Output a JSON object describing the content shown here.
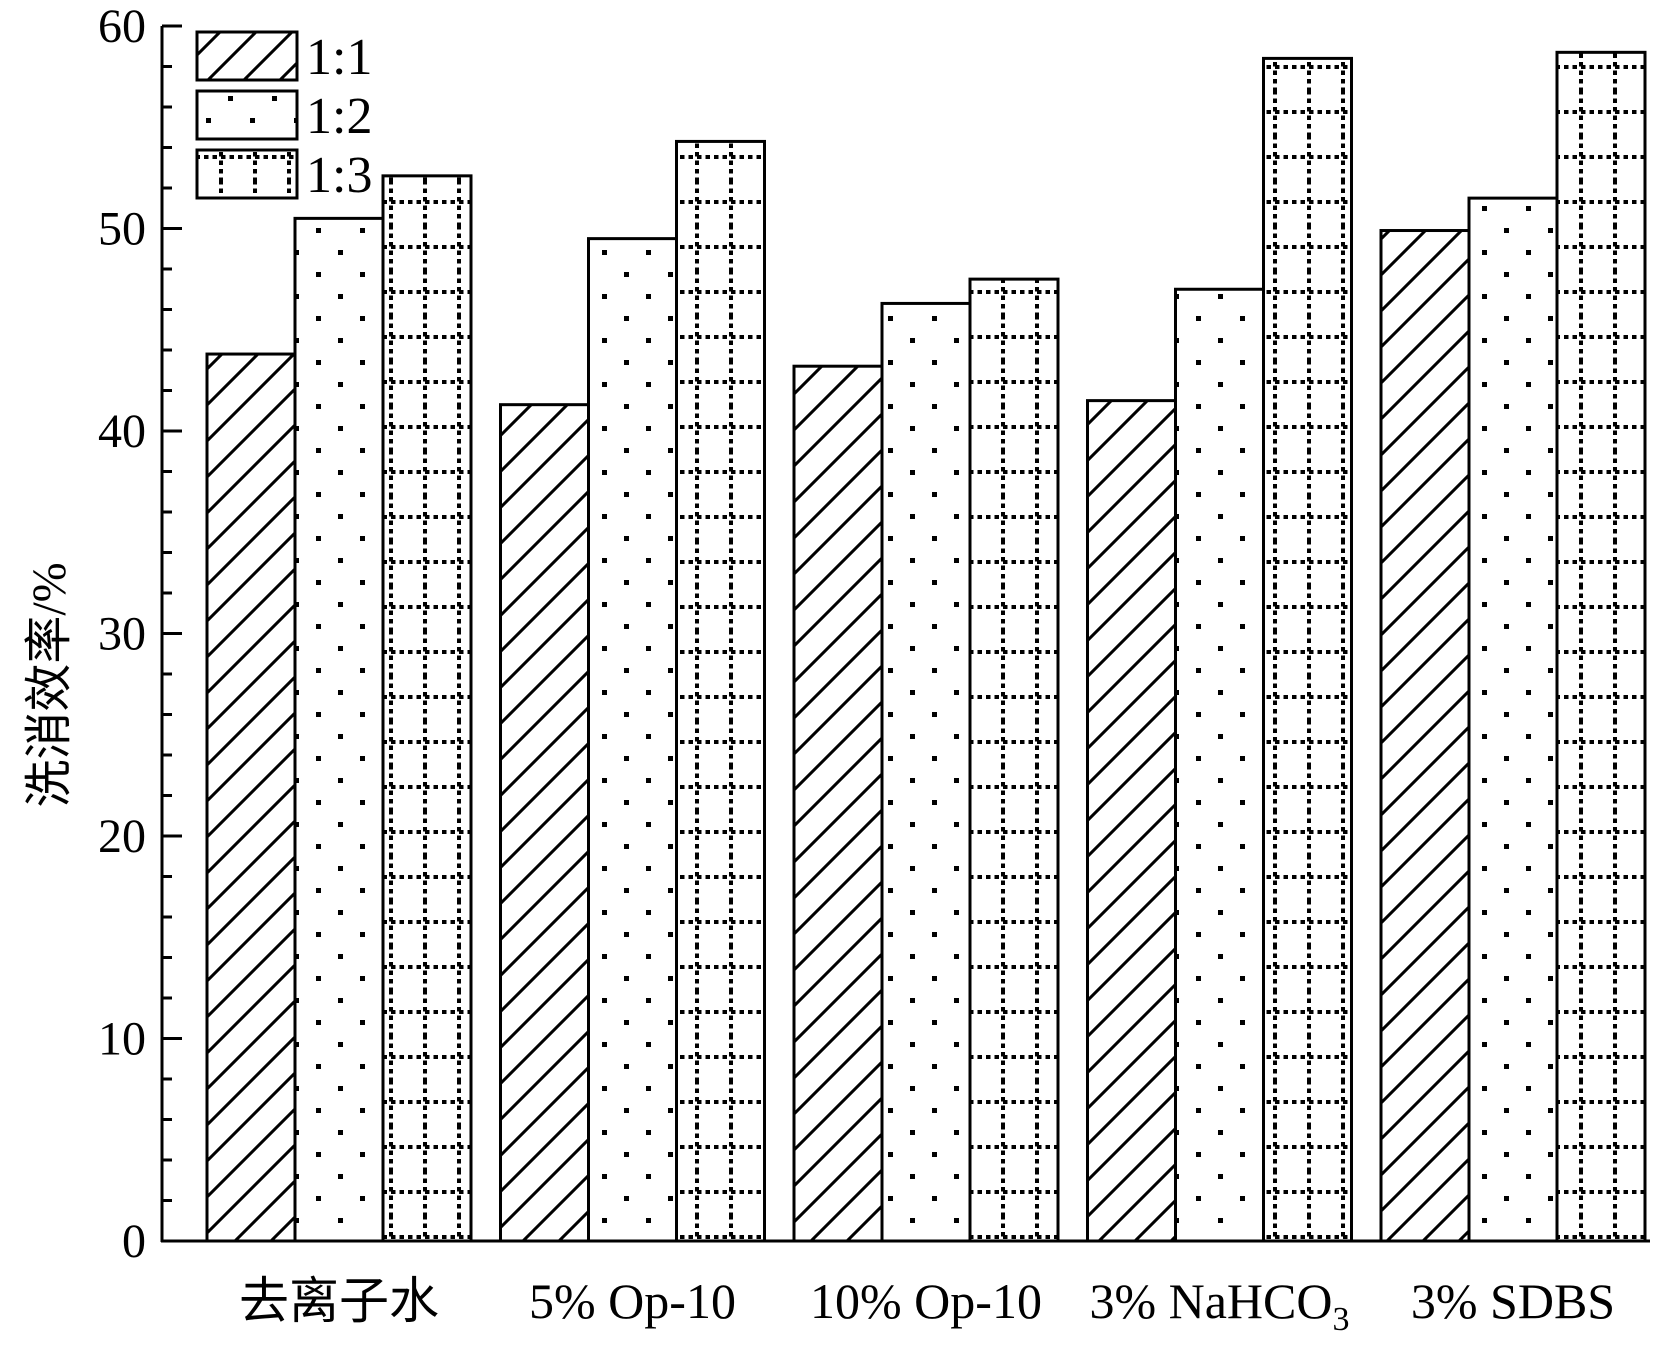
{
  "chart_data": {
    "type": "bar",
    "title": "",
    "xlabel": "",
    "ylabel": "洗消效率/%",
    "ylim": [
      0,
      60
    ],
    "yticks": [
      0,
      10,
      20,
      30,
      40,
      50,
      60
    ],
    "grid": false,
    "legend_position": "top-left",
    "categories": [
      {
        "text": "去离子水"
      },
      {
        "text": "5% Op-10"
      },
      {
        "text": "10% Op-10"
      },
      {
        "text": "3% NaHCO",
        "sub": "3"
      },
      {
        "text": "3% SDBS"
      }
    ],
    "series": [
      {
        "name": "1:1",
        "pattern": "hatch",
        "values": [
          43.8,
          41.3,
          43.2,
          41.5,
          49.9
        ]
      },
      {
        "name": "1:2",
        "pattern": "dots",
        "values": [
          50.5,
          49.5,
          46.3,
          47.0,
          51.5
        ]
      },
      {
        "name": "1:3",
        "pattern": "dotted-grid",
        "values": [
          52.6,
          54.3,
          47.5,
          58.4,
          58.7
        ]
      }
    ]
  }
}
